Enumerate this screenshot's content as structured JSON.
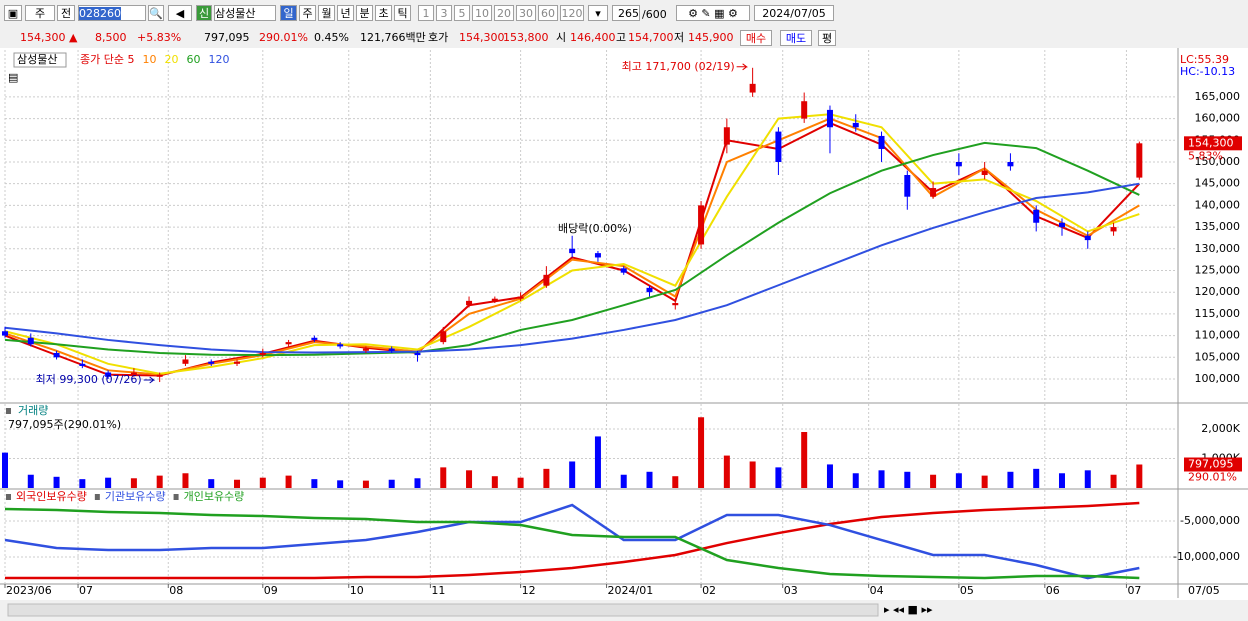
{
  "toolbar": {
    "items": [
      "주",
      "전",
      "028260",
      "신",
      "삼성물산",
      "일",
      "주",
      "월",
      "년",
      "분",
      "초",
      "틱",
      "1",
      "3",
      "5",
      "10",
      "20",
      "30",
      "60",
      "120",
      "265",
      "/600",
      "2024/07/05"
    ]
  },
  "quote": {
    "items": [
      {
        "text": "154,300 ▲",
        "color": "#e00000"
      },
      {
        "text": "8,500",
        "color": "#e00000"
      },
      {
        "text": "+5.83%",
        "color": "#e00000"
      },
      {
        "text": "797,095",
        "color": "#000000"
      },
      {
        "text": "290.01%",
        "color": "#e00000"
      },
      {
        "text": "0.45%",
        "color": "#000000"
      },
      {
        "text": "121,766백만",
        "color": "#000000"
      },
      {
        "text": "호가",
        "color": "#000000"
      },
      {
        "text": "154,300",
        "color": "#e00000"
      },
      {
        "text": "153,800",
        "color": "#e00000"
      },
      {
        "text": "시",
        "color": "#000000"
      },
      {
        "text": "146,400",
        "color": "#e00000"
      },
      {
        "text": "고",
        "color": "#000000"
      },
      {
        "text": "154,700",
        "color": "#e00000"
      },
      {
        "text": "저",
        "color": "#000000"
      },
      {
        "text": "145,900",
        "color": "#e00000"
      }
    ],
    "buy": "매수",
    "sell": "매도",
    "avg": "평"
  },
  "chart_data": [
    {
      "type": "candlestick",
      "name": "삼성물산",
      "up_color": "#e00000",
      "down_color": "#0000ff",
      "x": [
        0,
        6,
        12,
        18,
        24,
        30,
        36,
        42,
        48,
        54,
        60,
        66,
        72,
        78,
        84,
        90,
        96,
        102,
        108,
        114,
        120,
        126,
        132,
        138,
        144,
        150,
        156,
        162,
        168,
        174,
        180,
        186,
        192,
        198,
        204,
        210,
        216,
        222,
        228,
        234,
        240,
        246,
        252,
        258,
        264
      ],
      "open": [
        111000,
        109500,
        106000,
        103500,
        101500,
        101000,
        100500,
        103500,
        104000,
        103500,
        105500,
        108000,
        109500,
        108000,
        106500,
        107000,
        106000,
        108500,
        117000,
        118000,
        118500,
        121500,
        130000,
        129000,
        125500,
        121000,
        117000,
        131000,
        154000,
        166000,
        157000,
        160000,
        162000,
        159000,
        156000,
        147000,
        142000,
        150000,
        147000,
        150000,
        139000,
        136000,
        133000,
        134000,
        146400
      ],
      "high": [
        112000,
        110500,
        106500,
        104500,
        102000,
        102500,
        101500,
        105500,
        104500,
        104500,
        107000,
        109000,
        110000,
        108500,
        107500,
        107500,
        106500,
        112000,
        119000,
        119000,
        120000,
        126000,
        133000,
        129500,
        126000,
        121500,
        118000,
        141000,
        160000,
        171700,
        158000,
        166000,
        163000,
        161000,
        157000,
        148000,
        145500,
        152000,
        150000,
        152000,
        140000,
        137000,
        134000,
        136000,
        154700
      ],
      "low": [
        109500,
        107500,
        104500,
        102500,
        100000,
        100500,
        99300,
        103000,
        103000,
        103000,
        105000,
        107500,
        108500,
        107000,
        106000,
        106000,
        104000,
        108000,
        116500,
        117500,
        118000,
        121000,
        128000,
        127000,
        124000,
        119000,
        116000,
        130000,
        152000,
        165000,
        147000,
        159000,
        152000,
        157000,
        150000,
        139000,
        141500,
        147000,
        146000,
        148000,
        134000,
        133000,
        130000,
        133000,
        145900
      ],
      "close": [
        110000,
        108000,
        105000,
        103000,
        100500,
        101500,
        101000,
        104500,
        103500,
        104000,
        106000,
        108500,
        109000,
        107500,
        107000,
        106500,
        105500,
        111000,
        118000,
        118500,
        119000,
        124000,
        129000,
        128000,
        124500,
        120000,
        117500,
        140000,
        158000,
        168000,
        150000,
        164000,
        158000,
        158000,
        153000,
        142000,
        144000,
        149000,
        148000,
        149000,
        136000,
        135000,
        132000,
        135000,
        154300
      ],
      "value_labels": [
        null,
        null,
        null,
        null,
        null,
        null,
        null,
        null,
        null,
        null,
        null,
        null,
        null,
        null,
        null,
        null,
        null,
        null,
        null,
        null,
        null,
        null,
        null,
        null,
        null,
        null,
        null,
        null,
        null,
        null,
        null,
        null,
        null,
        null,
        null,
        null,
        null,
        null,
        null,
        null,
        null,
        null,
        null,
        null,
        "154,300"
      ],
      "change_label": "5.83%",
      "lines": [
        {
          "name": "종가 단순 5",
          "color": "#e00000",
          "x": [
            0,
            12,
            24,
            36,
            48,
            60,
            72,
            84,
            96,
            108,
            120,
            132,
            144,
            156,
            168,
            180,
            192,
            204,
            216,
            228,
            240,
            252,
            264
          ],
          "values": [
            110000,
            105500,
            101000,
            100800,
            103800,
            105800,
            108800,
            107200,
            106000,
            117000,
            118800,
            128000,
            125000,
            118000,
            155000,
            153000,
            159000,
            154000,
            143000,
            148500,
            137500,
            132500,
            145000
          ]
        },
        {
          "name": "10",
          "color": "#ff8000",
          "x": [
            0,
            12,
            24,
            36,
            48,
            60,
            72,
            84,
            96,
            108,
            120,
            132,
            144,
            156,
            168,
            180,
            192,
            204,
            216,
            228,
            240,
            252,
            264
          ],
          "values": [
            110500,
            106500,
            102000,
            101000,
            103500,
            105500,
            108500,
            107500,
            106300,
            115000,
            118500,
            127500,
            126000,
            119000,
            150000,
            155000,
            160000,
            155500,
            142000,
            148500,
            139000,
            133000,
            140000
          ]
        },
        {
          "name": "20",
          "color": "#f0e000",
          "x": [
            0,
            12,
            24,
            36,
            48,
            60,
            72,
            84,
            96,
            108,
            120,
            132,
            144,
            156,
            168,
            180,
            192,
            204,
            216,
            228,
            240,
            252,
            264
          ],
          "values": [
            111000,
            108000,
            103500,
            101200,
            102800,
            104800,
            107800,
            108000,
            106800,
            112000,
            118000,
            125000,
            126500,
            121500,
            142000,
            160000,
            161000,
            158000,
            145000,
            146000,
            141000,
            134000,
            138000
          ]
        },
        {
          "name": "60",
          "color": "#20a020",
          "x": [
            0,
            12,
            24,
            36,
            48,
            60,
            72,
            84,
            96,
            108,
            120,
            132,
            144,
            156,
            168,
            180,
            192,
            204,
            216,
            228,
            240,
            252,
            264
          ],
          "values": [
            109000,
            108000,
            106800,
            106000,
            105600,
            105500,
            105600,
            105900,
            106200,
            107800,
            111300,
            113600,
            117000,
            120500,
            128500,
            136000,
            142800,
            148000,
            151600,
            154400,
            153200,
            148000,
            142400
          ]
        },
        {
          "name": "120",
          "color": "#3050e0",
          "x": [
            0,
            12,
            24,
            36,
            48,
            60,
            72,
            84,
            96,
            108,
            120,
            132,
            144,
            156,
            168,
            180,
            192,
            204,
            216,
            228,
            240,
            252,
            264
          ],
          "values": [
            111800,
            110500,
            109000,
            107800,
            106800,
            106200,
            106100,
            106200,
            106300,
            106800,
            107800,
            109300,
            111300,
            113600,
            117000,
            121600,
            126200,
            130800,
            134800,
            138400,
            141700,
            143000,
            145000
          ]
        }
      ],
      "ylim": [
        94700,
        175800
      ],
      "yticks": [
        {
          "value": 100000,
          "label": "100,000"
        },
        {
          "value": 105000,
          "label": "105,000"
        },
        {
          "value": 110000,
          "label": "110,000"
        },
        {
          "value": 115000,
          "label": "115,000"
        },
        {
          "value": 120000,
          "label": "120,000"
        },
        {
          "value": 125000,
          "label": "125,000"
        },
        {
          "value": 130000,
          "label": "130,000"
        },
        {
          "value": 135000,
          "label": "135,000"
        },
        {
          "value": 140000,
          "label": "140,000"
        },
        {
          "value": 145000,
          "label": "145,000"
        },
        {
          "value": 150000,
          "label": "150,000"
        },
        {
          "value": 155000,
          "label": "155,000"
        },
        {
          "value": 160000,
          "label": "160,000"
        },
        {
          "value": 165000,
          "label": "165,000"
        }
      ],
      "xlim": [
        0,
        273
      ],
      "xticks": [
        {
          "value": 0,
          "label": "2023/06"
        },
        {
          "value": 17,
          "label": "07"
        },
        {
          "value": 38,
          "label": "08"
        },
        {
          "value": 60,
          "label": "09"
        },
        {
          "value": 80,
          "label": "10"
        },
        {
          "value": 99,
          "label": "11"
        },
        {
          "value": 120,
          "label": "12"
        },
        {
          "value": 140,
          "label": "2024/01"
        },
        {
          "value": 162,
          "label": "02"
        },
        {
          "value": 181,
          "label": "03"
        },
        {
          "value": 201,
          "label": "04"
        },
        {
          "value": 222,
          "label": "05"
        },
        {
          "value": 242,
          "label": "06"
        },
        {
          "value": 261,
          "label": "07"
        }
      ],
      "date_label": "07/05",
      "grid": true,
      "annotations": [
        "최고 171,700 (02/19)",
        "최저 99,300 (07/26)",
        "배당락(0.00%)"
      ],
      "indicators": [
        {
          "text": "LC:55.39",
          "color": "#e00000"
        },
        {
          "text": "HC:-10.13",
          "color": "#0000ff"
        }
      ]
    },
    {
      "type": "bar",
      "title": "거래량",
      "subtitle": "797,095주(290.01%)",
      "x": [
        0,
        6,
        12,
        18,
        24,
        30,
        36,
        42,
        48,
        54,
        60,
        66,
        72,
        78,
        84,
        90,
        96,
        102,
        108,
        114,
        120,
        126,
        132,
        138,
        144,
        150,
        156,
        162,
        168,
        174,
        180,
        186,
        192,
        198,
        204,
        210,
        216,
        222,
        228,
        234,
        240,
        246,
        252,
        258,
        264
      ],
      "values": [
        1200000,
        450000,
        380000,
        300000,
        350000,
        330000,
        420000,
        500000,
        300000,
        280000,
        350000,
        420000,
        300000,
        260000,
        250000,
        280000,
        330000,
        700000,
        600000,
        400000,
        350000,
        650000,
        900000,
        1750000,
        450000,
        550000,
        400000,
        2400000,
        1100000,
        900000,
        700000,
        1900000,
        800000,
        500000,
        600000,
        550000,
        450000,
        500000,
        420000,
        550000,
        650000,
        500000,
        600000,
        450000,
        797095
      ],
      "value_labels": [
        null,
        null,
        null,
        null,
        null,
        null,
        null,
        null,
        null,
        null,
        null,
        null,
        null,
        null,
        null,
        null,
        null,
        null,
        null,
        null,
        null,
        null,
        null,
        null,
        null,
        null,
        null,
        null,
        null,
        null,
        null,
        null,
        null,
        null,
        null,
        null,
        null,
        null,
        null,
        null,
        null,
        null,
        null,
        null,
        "797,095"
      ],
      "ratio_label": "290.01%",
      "ylim": [
        0,
        2850000
      ],
      "yticks": [
        {
          "value": 1000000,
          "label": "1,000K"
        },
        {
          "value": 2000000,
          "label": "2,000K"
        }
      ]
    },
    {
      "type": "line",
      "x": [
        0,
        12,
        24,
        36,
        48,
        60,
        72,
        84,
        96,
        108,
        120,
        132,
        144,
        156,
        168,
        180,
        192,
        204,
        216,
        228,
        240,
        252,
        264
      ],
      "series": [
        {
          "name": "외국인보유수량",
          "color": "#e00000",
          "values": [
            -12920000,
            -12920000,
            -12920000,
            -12920000,
            -12920000,
            -12920000,
            -12920000,
            -12780000,
            -12780000,
            -12500000,
            -12080000,
            -11530000,
            -10690000,
            -9720000,
            -8060000,
            -6670000,
            -5420000,
            -4440000,
            -3890000,
            -3470000,
            -3190000,
            -2920000,
            -2500000
          ]
        },
        {
          "name": "기관보유수량",
          "color": "#3050e0",
          "values": [
            -7640000,
            -8750000,
            -9030000,
            -9030000,
            -8750000,
            -8750000,
            -8190000,
            -7640000,
            -6530000,
            -5140000,
            -5140000,
            -2780000,
            -7640000,
            -7640000,
            -4170000,
            -4170000,
            -5560000,
            -7640000,
            -9720000,
            -9720000,
            -11110000,
            -12920000,
            -11530000
          ]
        },
        {
          "name": "개인보유수량",
          "color": "#20a020",
          "values": [
            -3330000,
            -3470000,
            -3750000,
            -3890000,
            -4170000,
            -4310000,
            -4580000,
            -4720000,
            -5140000,
            -5140000,
            -5560000,
            -6940000,
            -7220000,
            -7220000,
            -10420000,
            -11530000,
            -12360000,
            -12640000,
            -12780000,
            -12920000,
            -12640000,
            -12640000,
            -12920000
          ]
        }
      ],
      "ylim": [
        -13610000,
        -690000
      ],
      "yticks": [
        {
          "value": -5000000,
          "label": "-5,000,000"
        },
        {
          "value": -10000000,
          "label": "-10,000,000"
        }
      ]
    }
  ]
}
